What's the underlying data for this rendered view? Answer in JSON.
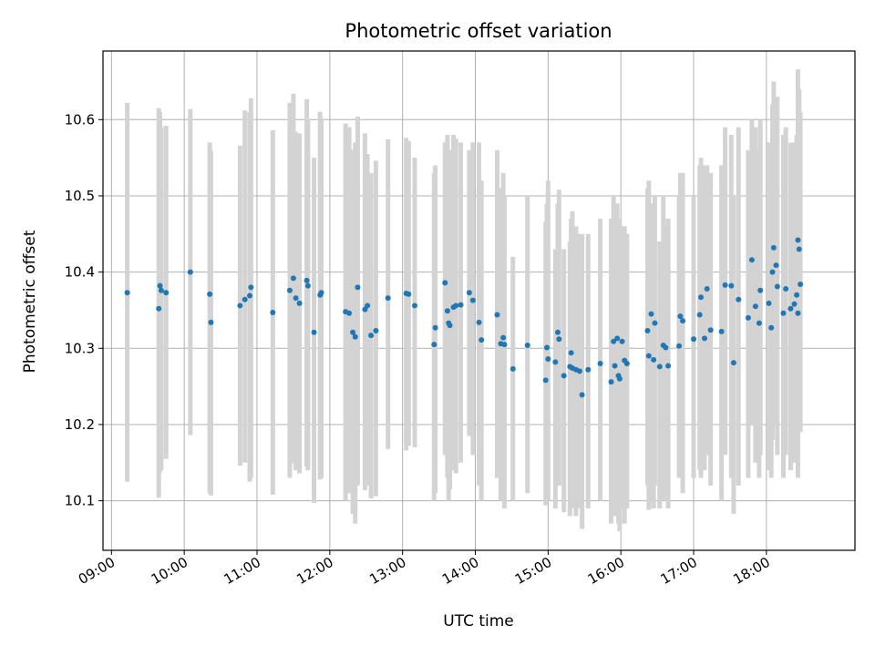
{
  "chart_data": {
    "type": "scatter",
    "title": "Photometric offset variation",
    "xlabel": "UTC time",
    "ylabel": "Photometric offset",
    "xlim": [
      "08:53",
      "19:13"
    ],
    "ylim": [
      10.035,
      10.69
    ],
    "xticks": [
      "09:00",
      "10:00",
      "11:00",
      "12:00",
      "13:00",
      "14:00",
      "15:00",
      "16:00",
      "17:00",
      "18:00"
    ],
    "yticks": [
      10.1,
      10.2,
      10.3,
      10.4,
      10.5,
      10.6
    ],
    "grid": true,
    "colors": {
      "marker": "#1f77b4",
      "errorbar": "#d3d3d3"
    },
    "series": [
      {
        "values": [
          [
            "09:13",
            10.373,
            10.125,
            10.622
          ],
          [
            "09:39",
            10.352,
            10.104,
            10.615
          ],
          [
            "09:40",
            10.382,
            10.137,
            10.61
          ],
          [
            "09:41",
            10.376,
            10.14,
            10.59
          ],
          [
            "09:45",
            10.373,
            10.155,
            10.592
          ],
          [
            "10:05",
            10.4,
            10.186,
            10.614
          ],
          [
            "10:21",
            10.371,
            10.11,
            10.57
          ],
          [
            "10:22",
            10.334,
            10.107,
            10.559
          ],
          [
            "10:46",
            10.356,
            10.146,
            10.566
          ],
          [
            "10:50",
            10.364,
            10.15,
            10.612
          ],
          [
            "10:54",
            10.369,
            10.125,
            10.61
          ],
          [
            "10:55",
            10.38,
            10.13,
            10.628
          ],
          [
            "11:13",
            10.347,
            10.108,
            10.586
          ],
          [
            "11:27",
            10.376,
            10.13,
            10.622
          ],
          [
            "11:30",
            10.392,
            10.149,
            10.634
          ],
          [
            "11:32",
            10.366,
            10.14,
            10.584
          ],
          [
            "11:35",
            10.359,
            10.136,
            10.582
          ],
          [
            "11:41",
            10.389,
            10.145,
            10.627
          ],
          [
            "11:42",
            10.382,
            10.14,
            10.6
          ],
          [
            "11:47",
            10.321,
            10.097,
            10.55
          ],
          [
            "11:52",
            10.37,
            10.128,
            10.61
          ],
          [
            "11:53",
            10.373,
            10.13,
            10.6
          ],
          [
            "12:13",
            10.348,
            10.1,
            10.595
          ],
          [
            "12:16",
            10.346,
            10.11,
            10.59
          ],
          [
            "12:19",
            10.321,
            10.083,
            10.56
          ],
          [
            "12:21",
            10.315,
            10.07,
            10.57
          ],
          [
            "12:23",
            10.38,
            10.12,
            10.604
          ],
          [
            "12:29",
            10.351,
            10.114,
            10.582
          ],
          [
            "12:31",
            10.356,
            10.12,
            10.555
          ],
          [
            "12:34",
            10.317,
            10.103,
            10.53
          ],
          [
            "12:38",
            10.323,
            10.106,
            10.546
          ],
          [
            "12:48",
            10.366,
            10.168,
            10.574
          ],
          [
            "13:03",
            10.372,
            10.166,
            10.576
          ],
          [
            "13:05",
            10.371,
            10.172,
            10.572
          ],
          [
            "13:10",
            10.356,
            10.17,
            10.55
          ],
          [
            "13:26",
            10.305,
            10.1,
            10.53
          ],
          [
            "13:27",
            10.327,
            10.11,
            10.54
          ],
          [
            "13:35",
            10.386,
            10.16,
            10.57
          ],
          [
            "13:37",
            10.349,
            10.13,
            10.58
          ],
          [
            "13:38",
            10.333,
            10.1,
            10.554
          ],
          [
            "13:39",
            10.33,
            10.115,
            10.56
          ],
          [
            "13:42",
            10.354,
            10.14,
            10.58
          ],
          [
            "13:44",
            10.356,
            10.136,
            10.575
          ],
          [
            "13:48",
            10.357,
            10.15,
            10.57
          ],
          [
            "13:55",
            10.373,
            10.185,
            10.56
          ],
          [
            "13:58",
            10.363,
            10.16,
            10.57
          ],
          [
            "14:03",
            10.334,
            10.12,
            10.57
          ],
          [
            "14:05",
            10.311,
            10.1,
            10.52
          ],
          [
            "14:18",
            10.344,
            10.13,
            10.56
          ],
          [
            "14:21",
            10.306,
            10.1,
            10.51
          ],
          [
            "14:23",
            10.314,
            10.108,
            10.53
          ],
          [
            "14:24",
            10.305,
            10.09,
            10.5
          ],
          [
            "14:31",
            10.273,
            10.1,
            10.42
          ],
          [
            "14:43",
            10.304,
            10.11,
            10.5
          ],
          [
            "14:58",
            10.258,
            10.094,
            10.466
          ],
          [
            "14:59",
            10.301,
            10.1,
            10.49
          ],
          [
            "15:00",
            10.286,
            10.1,
            10.52
          ],
          [
            "15:06",
            10.282,
            10.09,
            10.43
          ],
          [
            "15:08",
            10.321,
            10.12,
            10.49
          ],
          [
            "15:09",
            10.312,
            10.12,
            10.508
          ],
          [
            "15:13",
            10.264,
            10.085,
            10.43
          ],
          [
            "15:18",
            10.276,
            10.08,
            10.44
          ],
          [
            "15:19",
            10.294,
            10.11,
            10.47
          ],
          [
            "15:20",
            10.274,
            10.09,
            10.48
          ],
          [
            "15:23",
            10.272,
            10.08,
            10.46
          ],
          [
            "15:26",
            10.27,
            10.09,
            10.45
          ],
          [
            "15:28",
            10.239,
            10.063,
            10.45
          ],
          [
            "15:33",
            10.272,
            10.09,
            10.45
          ],
          [
            "15:43",
            10.28,
            10.1,
            10.47
          ],
          [
            "15:52",
            10.256,
            10.07,
            10.47
          ],
          [
            "15:54",
            10.309,
            10.1,
            10.5
          ],
          [
            "15:55",
            10.277,
            10.08,
            10.48
          ],
          [
            "15:57",
            10.313,
            10.1,
            10.49
          ],
          [
            "15:58",
            10.264,
            10.07,
            10.46
          ],
          [
            "15:59",
            10.26,
            10.06,
            10.47
          ],
          [
            "16:01",
            10.309,
            10.09,
            10.46
          ],
          [
            "16:03",
            10.284,
            10.07,
            10.46
          ],
          [
            "16:05",
            10.28,
            10.09,
            10.45
          ],
          [
            "16:22",
            10.323,
            10.12,
            10.51
          ],
          [
            "16:23",
            10.29,
            10.088,
            10.52
          ],
          [
            "16:25",
            10.345,
            10.1,
            10.49
          ],
          [
            "16:27",
            10.285,
            10.09,
            10.48
          ],
          [
            "16:28",
            10.333,
            10.12,
            10.5
          ],
          [
            "16:32",
            10.276,
            10.09,
            10.44
          ],
          [
            "16:35",
            10.304,
            10.1,
            10.5
          ],
          [
            "16:37",
            10.301,
            10.1,
            10.46
          ],
          [
            "16:39",
            10.277,
            10.09,
            10.47
          ],
          [
            "16:48",
            10.303,
            10.13,
            10.5
          ],
          [
            "16:49",
            10.342,
            10.14,
            10.53
          ],
          [
            "16:51",
            10.336,
            10.11,
            10.53
          ],
          [
            "17:00",
            10.312,
            10.13,
            10.5
          ],
          [
            "17:05",
            10.344,
            10.14,
            10.54
          ],
          [
            "17:06",
            10.367,
            10.13,
            10.55
          ],
          [
            "17:09",
            10.313,
            10.14,
            10.54
          ],
          [
            "17:11",
            10.378,
            10.16,
            10.54
          ],
          [
            "17:14",
            10.324,
            10.12,
            10.53
          ],
          [
            "17:23",
            10.322,
            10.1,
            10.54
          ],
          [
            "17:26",
            10.383,
            10.16,
            10.59
          ],
          [
            "17:31",
            10.382,
            10.13,
            10.58
          ],
          [
            "17:33",
            10.281,
            10.083,
            10.5
          ],
          [
            "17:37",
            10.364,
            10.12,
            10.59
          ],
          [
            "17:45",
            10.34,
            10.13,
            10.56
          ],
          [
            "17:48",
            10.416,
            10.2,
            10.6
          ],
          [
            "17:51",
            10.355,
            10.15,
            10.59
          ],
          [
            "17:54",
            10.333,
            10.13,
            10.56
          ],
          [
            "17:55",
            10.376,
            10.16,
            10.6
          ],
          [
            "18:02",
            10.359,
            10.14,
            10.57
          ],
          [
            "18:04",
            10.327,
            10.13,
            10.56
          ],
          [
            "18:05",
            10.4,
            10.18,
            10.62
          ],
          [
            "18:06",
            10.432,
            10.21,
            10.65
          ],
          [
            "18:08",
            10.409,
            10.2,
            10.61
          ],
          [
            "18:09",
            10.381,
            10.16,
            10.63
          ],
          [
            "18:14",
            10.346,
            10.13,
            10.58
          ],
          [
            "18:16",
            10.378,
            10.16,
            10.59
          ],
          [
            "18:20",
            10.352,
            10.14,
            10.57
          ],
          [
            "18:23",
            10.358,
            10.15,
            10.57
          ],
          [
            "18:25",
            10.37,
            10.16,
            10.58
          ],
          [
            "18:26",
            10.346,
            10.13,
            10.56
          ],
          [
            "18:26",
            10.442,
            10.19,
            10.666
          ],
          [
            "18:27",
            10.43,
            10.2,
            10.64
          ],
          [
            "18:28",
            10.384,
            10.19,
            10.61
          ]
        ]
      }
    ]
  }
}
